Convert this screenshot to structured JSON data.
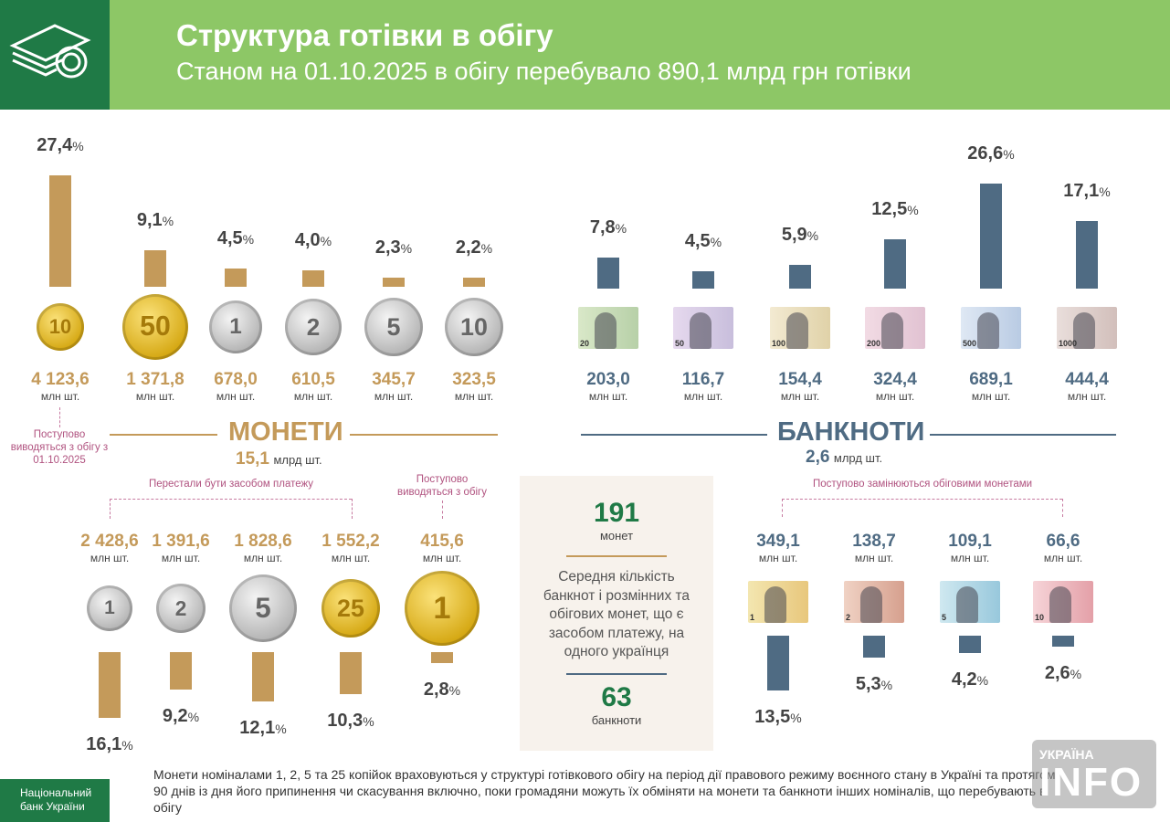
{
  "header": {
    "title": "Структура готівки в обігу",
    "subtitle": "Станом на 01.10.2025  в обігу перебувало 890,1 млрд грн готівки",
    "icon": "cash-coins-icon"
  },
  "colors": {
    "coins": "#c49a5a",
    "banknotes": "#4f6b83",
    "header_green": "#8dc766",
    "dark_green": "#1f7a46",
    "note_pink": "#b0527f"
  },
  "unit": "млн шт.",
  "coins_section": {
    "title": "МОНЕТИ",
    "total_value": "15,1",
    "total_unit": "млрд шт."
  },
  "banknotes_section": {
    "title": "БАНКНОТИ",
    "total_value": "2,6",
    "total_unit": "млрд шт."
  },
  "annotations": {
    "coin10k": "Поступово виводяться з обігу з 01.10.2025",
    "stopped": "Перестали бути засобом платежу",
    "hryvnia1": "Поступово виводяться з обігу",
    "small_notes": "Поступово замінюються обіговими монетами"
  },
  "summary": {
    "coins_value": "191",
    "coins_label": "монет",
    "text": "Середня кількість банкнот і розмінних та обігових монет, що є засобом платежу, на одного українця",
    "banknotes_value": "63",
    "banknotes_label": "банкноти"
  },
  "footnote": "Монети номіналами 1, 2, 5 та 25 копійок враховуються у структурі готівкового обігу на період дії правового режиму воєнного стану в Україні та протягом 90 днів із дня його припинення чи скасування включно, поки громадяни можуть їх обміняти на  монети та  банкноти інших номіналів, що перебувають в обігу",
  "footer_logo": "Національний банк України",
  "watermark": "УКРАЇНА INFO",
  "chart_data": [
    {
      "type": "bar",
      "series_name": "coins in circulation",
      "categories": [
        "10 коп.",
        "50 коп.",
        "1 грн",
        "2 грн",
        "5 грн",
        "10 грн"
      ],
      "share_pct": [
        27.4,
        9.1,
        4.5,
        4.0,
        2.3,
        2.2
      ],
      "share_labels": [
        "27,4",
        "9,1",
        "4,5",
        "4,0",
        "2,3",
        "2,2"
      ],
      "quantity_mln": [
        "4 123,6",
        "1 371,8",
        "678,0",
        "610,5",
        "345,7",
        "323,5"
      ]
    },
    {
      "type": "bar",
      "categories": [
        "20 грн",
        "50 грн",
        "100 грн",
        "200 грн",
        "500 грн",
        "1000 грн"
      ],
      "share_pct": [
        7.8,
        4.5,
        5.9,
        12.5,
        26.6,
        17.1
      ],
      "share_labels": [
        "7,8",
        "4,5",
        "5,9",
        "12,5",
        "26,6",
        "17,1"
      ],
      "quantity_mln": [
        "203,0",
        "116,7",
        "154,4",
        "324,4",
        "689,1",
        "444,4"
      ]
    },
    {
      "type": "bar",
      "categories": [
        "1 коп.",
        "2 коп.",
        "5 коп.",
        "25 коп.",
        "1 грн (монета)"
      ],
      "share_pct": [
        16.1,
        9.2,
        12.1,
        10.3,
        2.8
      ],
      "share_labels": [
        "16,1",
        "9,2",
        "12,1",
        "10,3",
        "2,8"
      ],
      "quantity_mln": [
        "2 428,6",
        "1 391,6",
        "1 828,6",
        "1 552,2",
        "415,6"
      ]
    },
    {
      "type": "bar",
      "categories": [
        "1 грн",
        "2 грн",
        "5 грн",
        "10 грн"
      ],
      "share_pct": [
        13.5,
        5.3,
        4.2,
        2.6
      ],
      "share_labels": [
        "13,5",
        "5,3",
        "4,2",
        "2,6"
      ],
      "quantity_mln": [
        "349,1",
        "138,7",
        "109,1",
        "66,6"
      ]
    }
  ]
}
